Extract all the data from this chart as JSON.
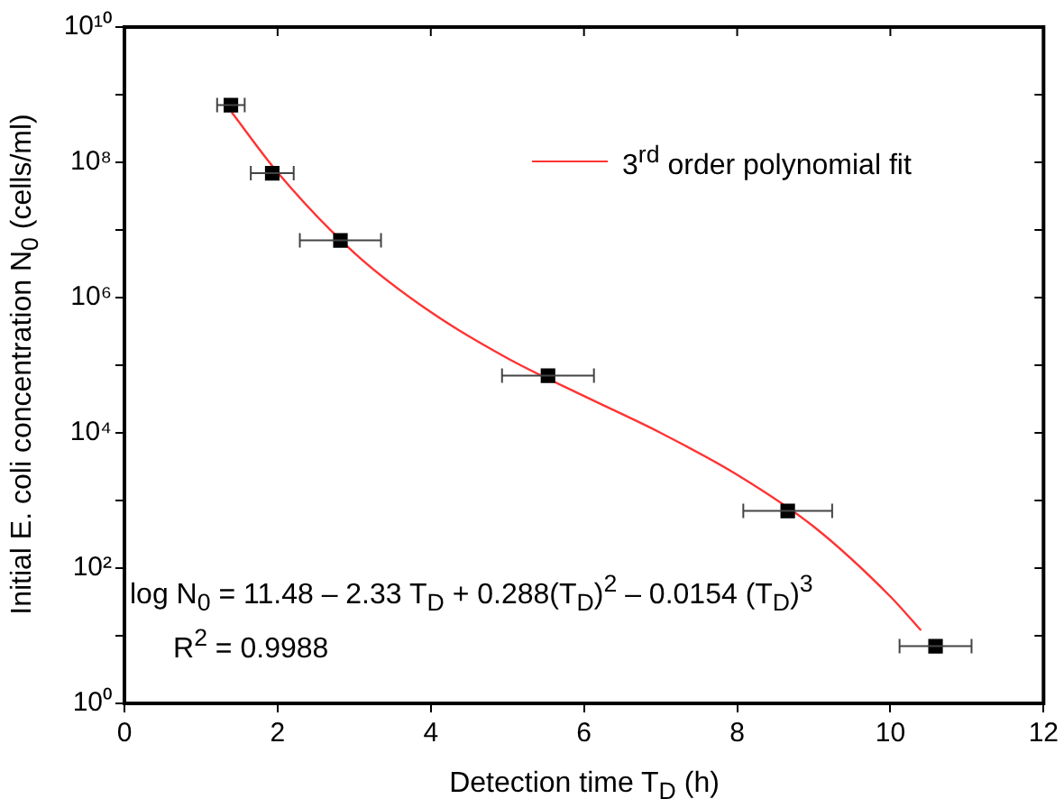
{
  "chart_data": {
    "type": "scatter",
    "xlabel": "Detection time T$_{D}$ (h)",
    "ylabel": "Initial E. coli concentration N$_{0}$ (cells/ml)",
    "xlim": [
      0,
      12
    ],
    "xticks": [
      0,
      2,
      4,
      6,
      8,
      10,
      12
    ],
    "ylim": [
      1,
      10000000000
    ],
    "log": "y",
    "yticks": [
      {
        "value": 1,
        "label": "10⁰"
      },
      {
        "value": 10,
        "label": null
      },
      {
        "value": 100,
        "label": "10²"
      },
      {
        "value": 1000,
        "label": null
      },
      {
        "value": 10000,
        "label": "10⁴"
      },
      {
        "value": 100000,
        "label": null
      },
      {
        "value": 1000000,
        "label": "10⁶"
      },
      {
        "value": 10000000,
        "label": null
      },
      {
        "value": 100000000,
        "label": "10⁸"
      },
      {
        "value": 1000000000,
        "label": null
      },
      {
        "value": 10000000000,
        "label": "10¹⁰"
      }
    ],
    "grid": false,
    "legend": "top right",
    "series": [
      {
        "color": "#000000",
        "marker": "square",
        "x": [
          1.39,
          1.93,
          2.82,
          5.53,
          8.66,
          10.59
        ],
        "values": [
          700000000,
          69000000,
          7000000,
          70000,
          700,
          7
        ],
        "xerrors": [
          0.18,
          0.28,
          0.53,
          0.6,
          0.58,
          0.47
        ]
      },
      {
        "type": "line",
        "name": "3$^{rd}$ order polynomial fit",
        "color": "#ff3333",
        "marker": "none",
        "x": [
          1.4,
          2,
          3,
          4,
          5,
          6,
          7,
          8,
          9,
          10,
          10.4
        ],
        "values": [
          550000000,
          71000000,
          4600000,
          610000,
          127000,
          35000,
          10000,
          2400,
          410,
          38,
          12
        ]
      }
    ],
    "annotations": [
      "log N$_{0}$ = 11.48 – 2.33 T$_{D}$ + 0.288(T$_{D}$)$^{2}$ – 0.0154 (T$_{D}$)$^{3}$",
      "R$^{2}$ = 0.9988"
    ]
  }
}
